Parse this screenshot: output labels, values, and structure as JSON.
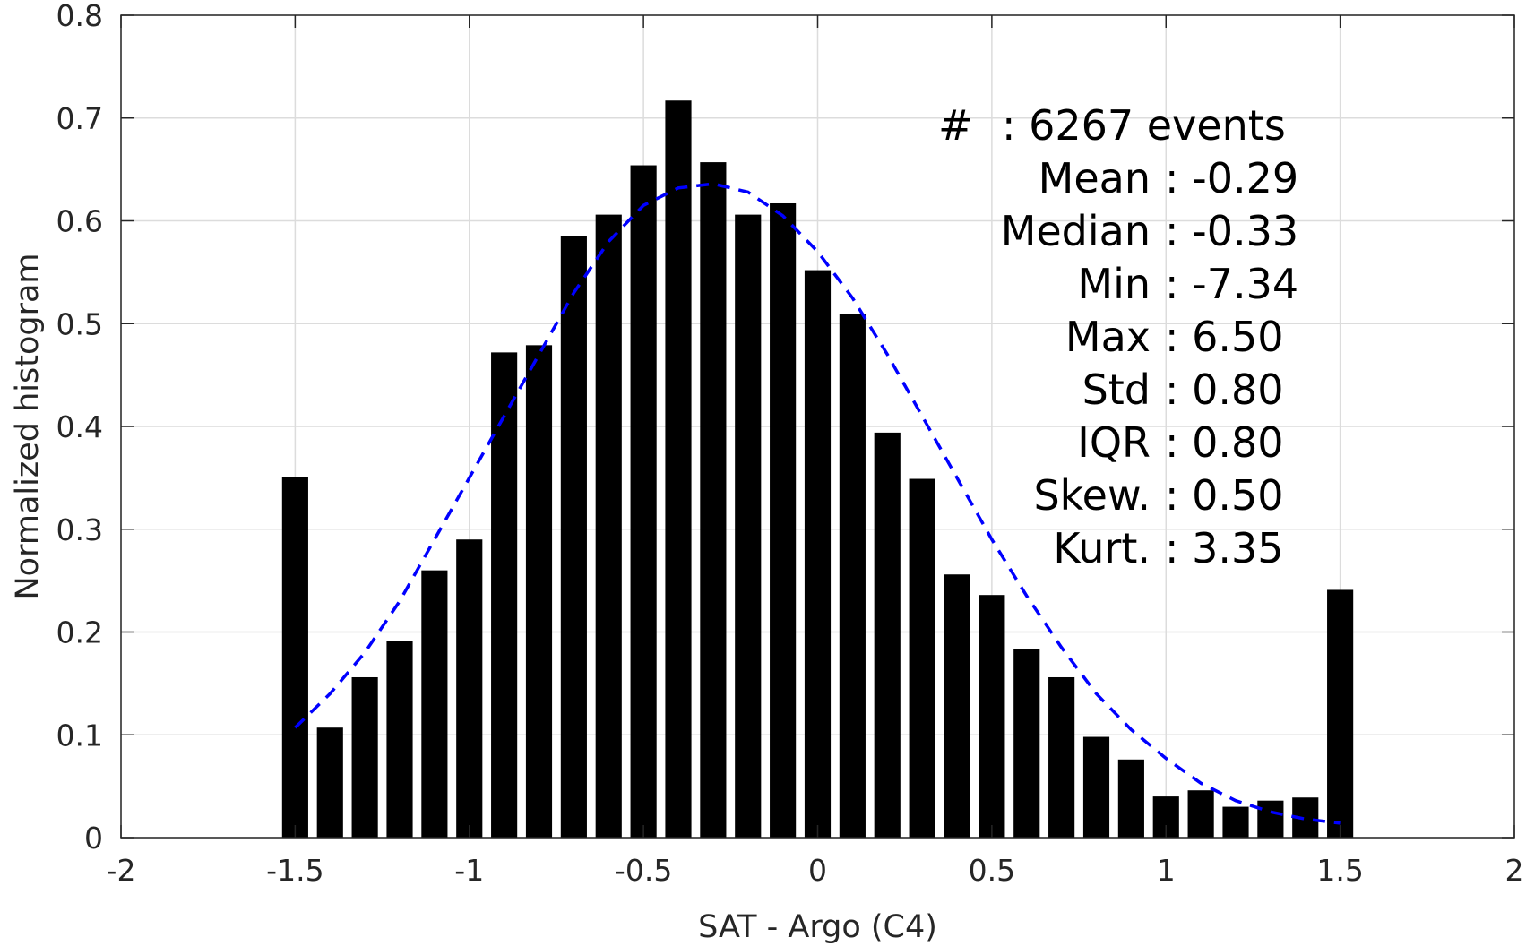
{
  "chart_data": {
    "type": "bar",
    "xlabel": "SAT - Argo (C4)",
    "ylabel": "Normalized histogram",
    "xlim": [
      -2,
      2
    ],
    "ylim": [
      0,
      0.8
    ],
    "xticks": [
      -2,
      -1.5,
      -1,
      -0.5,
      0,
      0.5,
      1,
      1.5,
      2
    ],
    "xtick_labels": [
      "-2",
      "-1.5",
      "-1",
      "-0.5",
      "0",
      "0.5",
      "1",
      "1.5",
      "2"
    ],
    "yticks": [
      0,
      0.1,
      0.2,
      0.3,
      0.4,
      0.5,
      0.6,
      0.7,
      0.8
    ],
    "ytick_labels": [
      "0",
      "0.1",
      "0.2",
      "0.3",
      "0.4",
      "0.5",
      "0.6",
      "0.7",
      "0.8"
    ],
    "grid": true,
    "bar_color": "#000000",
    "x": [
      -1.5,
      -1.4,
      -1.3,
      -1.2,
      -1.1,
      -1.0,
      -0.9,
      -0.8,
      -0.7,
      -0.6,
      -0.5,
      -0.4,
      -0.3,
      -0.2,
      -0.1,
      0.0,
      0.1,
      0.2,
      0.3,
      0.4,
      0.5,
      0.6,
      0.7,
      0.8,
      0.9,
      1.0,
      1.1,
      1.2,
      1.3,
      1.4,
      1.5
    ],
    "values": [
      0.351,
      0.107,
      0.156,
      0.191,
      0.26,
      0.29,
      0.472,
      0.479,
      0.585,
      0.606,
      0.654,
      0.717,
      0.657,
      0.606,
      0.617,
      0.552,
      0.509,
      0.394,
      0.349,
      0.256,
      0.236,
      0.183,
      0.156,
      0.098,
      0.076,
      0.04,
      0.046,
      0.03,
      0.036,
      0.039,
      0.241
    ],
    "fit_curve": {
      "style": "dashed",
      "color": "#0000ff",
      "x": [
        -1.5,
        -1.4,
        -1.3,
        -1.2,
        -1.1,
        -1.0,
        -0.9,
        -0.8,
        -0.7,
        -0.6,
        -0.5,
        -0.4,
        -0.3,
        -0.2,
        -0.1,
        0.0,
        0.1,
        0.2,
        0.3,
        0.4,
        0.5,
        0.6,
        0.7,
        0.8,
        0.9,
        1.0,
        1.1,
        1.2,
        1.3,
        1.4,
        1.5
      ],
      "y": [
        0.107,
        0.14,
        0.18,
        0.23,
        0.29,
        0.35,
        0.41,
        0.47,
        0.53,
        0.58,
        0.615,
        0.632,
        0.636,
        0.628,
        0.605,
        0.57,
        0.525,
        0.47,
        0.41,
        0.35,
        0.29,
        0.235,
        0.185,
        0.14,
        0.105,
        0.077,
        0.053,
        0.036,
        0.025,
        0.018,
        0.014
      ]
    },
    "stats": [
      {
        "label": "#",
        "sep": ":",
        "value": "6267 events"
      },
      {
        "label": "Mean",
        "sep": ":",
        "value": "-0.29"
      },
      {
        "label": "Median",
        "sep": ":",
        "value": "-0.33"
      },
      {
        "label": "Min",
        "sep": ":",
        "value": "-7.34"
      },
      {
        "label": "Max",
        "sep": ":",
        "value": "6.50"
      },
      {
        "label": "Std",
        "sep": ":",
        "value": "0.80"
      },
      {
        "label": "IQR",
        "sep": ":",
        "value": "0.80"
      },
      {
        "label": "Skew.",
        "sep": ":",
        "value": "0.50"
      },
      {
        "label": "Kurt.",
        "sep": ":",
        "value": "3.35"
      }
    ]
  }
}
